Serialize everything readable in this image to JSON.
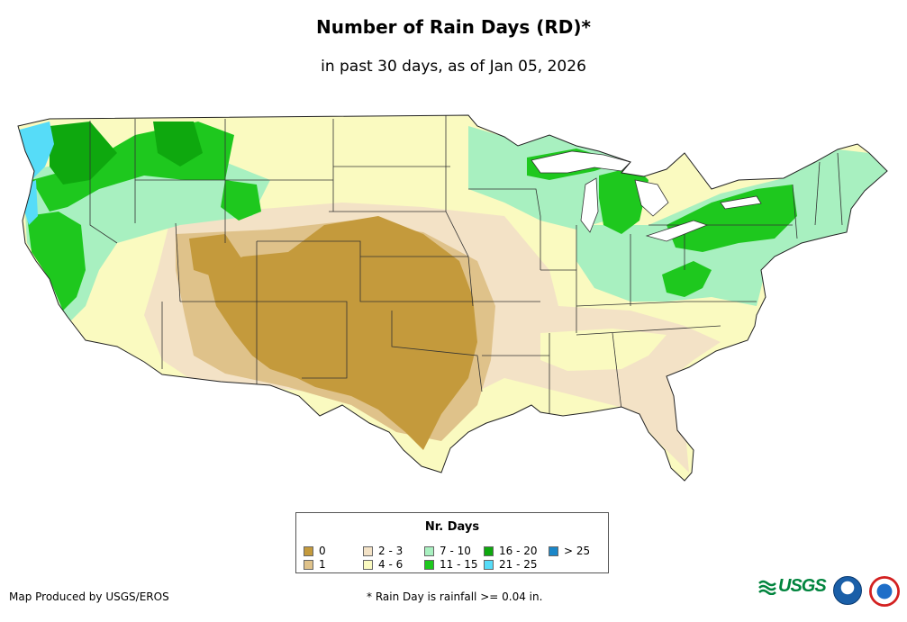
{
  "header": {
    "title": "Number of Rain Days (RD)*",
    "subtitle": "in past 30 days, as of Jan 05, 2026"
  },
  "legend": {
    "title": "Nr. Days",
    "classes": [
      {
        "label": "0",
        "color": "#c49a3c"
      },
      {
        "label": "1",
        "color": "#dfc28a"
      },
      {
        "label": "2 - 3",
        "color": "#f3e2c6"
      },
      {
        "label": "4 - 6",
        "color": "#fafac0"
      },
      {
        "label": "7 - 10",
        "color": "#a8f0c0"
      },
      {
        "label": "11 - 15",
        "color": "#1ec81e"
      },
      {
        "label": "16 - 20",
        "color": "#0ea80e"
      },
      {
        "label": "21 - 25",
        "color": "#56dcf8"
      },
      {
        "label": "> 25",
        "color": "#1a86c8"
      }
    ]
  },
  "footer": {
    "credit": "Map Produced by USGS/EROS",
    "note": "* Rain Day is rainfall >= 0.04 in."
  },
  "logos": {
    "usgs_text": "USGS",
    "usgs_icon": "usgs-wave-icon",
    "noaa_icon": "noaa-seal-icon",
    "nws_icon": "nws-seal-icon"
  }
}
